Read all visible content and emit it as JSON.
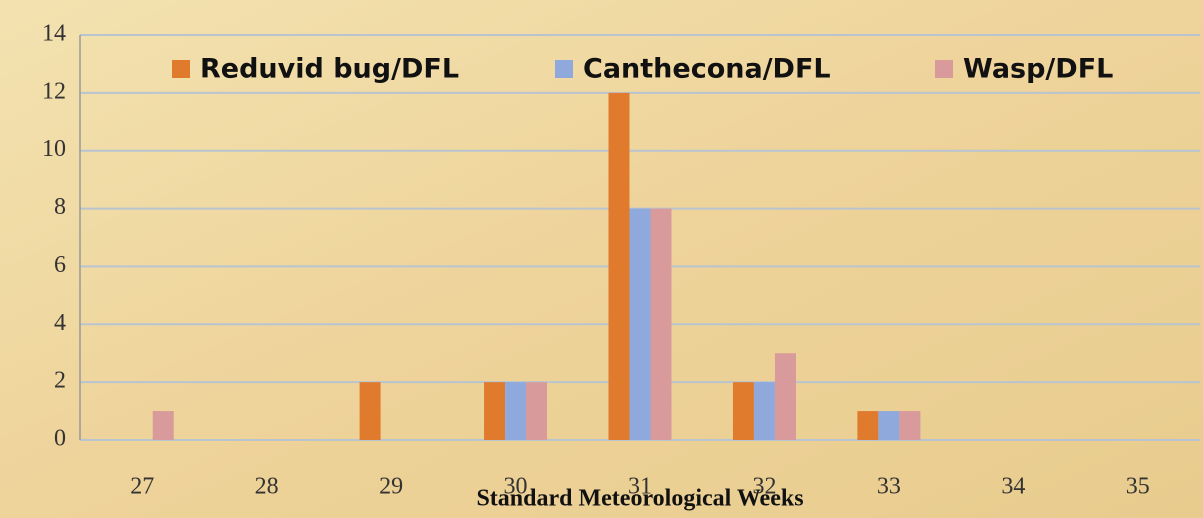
{
  "chart_data": {
    "type": "bar",
    "categories": [
      "27",
      "28",
      "29",
      "30",
      "31",
      "32",
      "33",
      "34",
      "35"
    ],
    "x_label": "Standard Meteorological Weeks",
    "series": [
      {
        "name": "Reduvid bug/DFL",
        "color": "#e07b2e",
        "values": [
          0,
          0,
          2,
          2,
          12,
          2,
          1,
          0,
          0
        ]
      },
      {
        "name": "Canthecona/DFL",
        "color": "#8fa9dc",
        "values": [
          0,
          0,
          0,
          2,
          8,
          2,
          1,
          0,
          0
        ]
      },
      {
        "name": "Wasp/DFL",
        "color": "#d89a9a",
        "values": [
          1,
          0,
          0,
          2,
          8,
          3,
          1,
          0,
          0
        ]
      }
    ],
    "ylim": [
      0,
      14
    ],
    "yticks": [
      0,
      2,
      4,
      6,
      8,
      10,
      12,
      14
    ],
    "grid": true,
    "legend": "top"
  }
}
